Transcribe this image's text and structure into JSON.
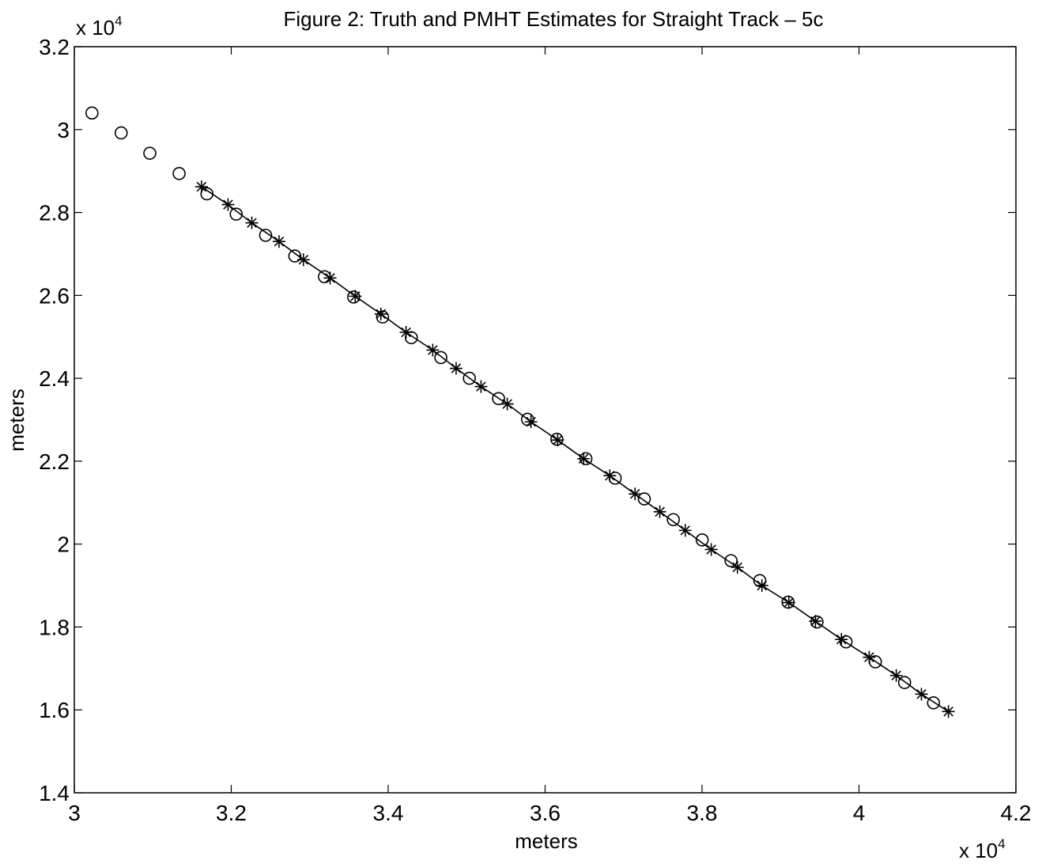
{
  "chart_data": {
    "type": "line",
    "title": "Figure 2:  Truth and PMHT Estimates for Straight Track – 5c",
    "xlabel": "meters",
    "ylabel": "meters",
    "xlim": [
      30000,
      42000
    ],
    "ylim": [
      14000,
      32000
    ],
    "x_ticks": [
      30000,
      32000,
      34000,
      36000,
      38000,
      40000,
      42000
    ],
    "y_ticks": [
      14000,
      16000,
      18000,
      20000,
      22000,
      24000,
      26000,
      28000,
      30000,
      32000
    ],
    "x_tick_labels": [
      "3",
      "3.2",
      "3.4",
      "3.6",
      "3.8",
      "4",
      "4.2"
    ],
    "y_tick_labels": [
      "1.4",
      "1.6",
      "1.8",
      "2",
      "2.2",
      "2.4",
      "2.6",
      "2.8",
      "3",
      "3.2"
    ],
    "x_multiplier": {
      "base": "x 10",
      "exp": "4"
    },
    "y_multiplier": {
      "base": "x 10",
      "exp": "4"
    },
    "grid": false,
    "series": [
      {
        "marker": "o",
        "line": false,
        "x": [
          30225,
          30597,
          30962,
          31336,
          31690,
          32063,
          32438,
          32810,
          33188,
          33560,
          33929,
          34295,
          34671,
          35035,
          35407,
          35776,
          36150,
          36520,
          36893,
          37264,
          37634,
          38002,
          38369,
          38736,
          39096,
          39465,
          39835,
          40209,
          40581,
          40950
        ],
        "y": [
          30400,
          29920,
          29430,
          28940,
          28450,
          27960,
          27450,
          26950,
          26450,
          25960,
          25480,
          24980,
          24500,
          24000,
          23510,
          23010,
          22530,
          22060,
          21590,
          21090,
          20590,
          20100,
          19600,
          19120,
          18600,
          18120,
          17640,
          17160,
          16660,
          16170
        ]
      },
      {
        "marker": "*",
        "line": true,
        "x": [
          31621,
          31959,
          32262,
          32609,
          32920,
          33260,
          33580,
          33907,
          34228,
          34568,
          34866,
          35183,
          35518,
          35820,
          36160,
          36490,
          36824,
          37146,
          37462,
          37786,
          38117,
          38451,
          38763,
          39106,
          39445,
          39776,
          40130,
          40475,
          40796,
          41140
        ],
        "y": [
          28620,
          28190,
          27750,
          27300,
          26860,
          26420,
          25980,
          25550,
          25110,
          24680,
          24240,
          23800,
          23380,
          22950,
          22510,
          22060,
          21650,
          21210,
          20780,
          20330,
          19870,
          19440,
          19000,
          18590,
          18140,
          17700,
          17270,
          16830,
          16380,
          15960
        ]
      }
    ]
  }
}
